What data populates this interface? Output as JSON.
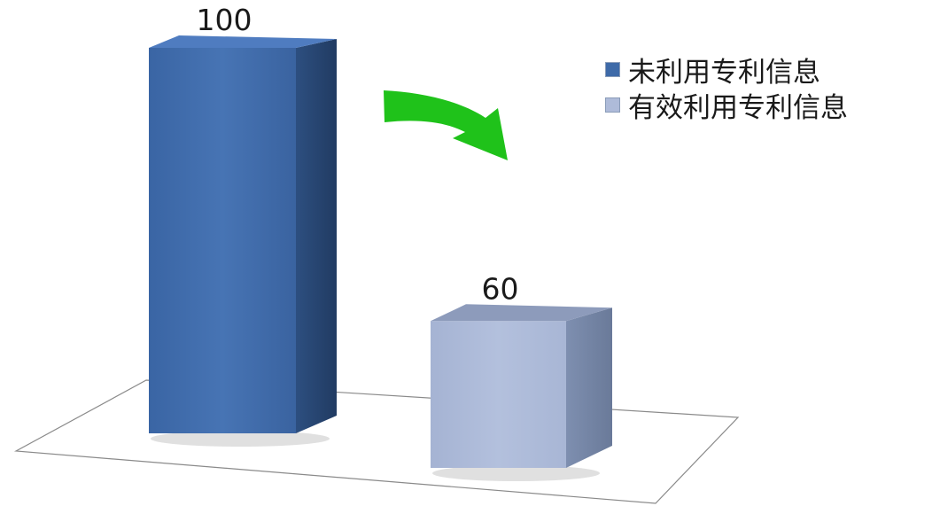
{
  "chart_data": {
    "type": "bar",
    "title": "",
    "xlabel": "",
    "ylabel": "",
    "ylim": [
      0,
      100
    ],
    "grid": false,
    "legend_position": "top-right",
    "series": [
      {
        "name": "未利用专利信息",
        "value": 100,
        "data_label": "100",
        "color": "#3e6aa8"
      },
      {
        "name": "有效利用专利信息",
        "value": 60,
        "data_label": "60",
        "color": "#aebbd9"
      }
    ],
    "annotation": {
      "type": "curved-arrow",
      "color": "#1fc21a"
    }
  }
}
